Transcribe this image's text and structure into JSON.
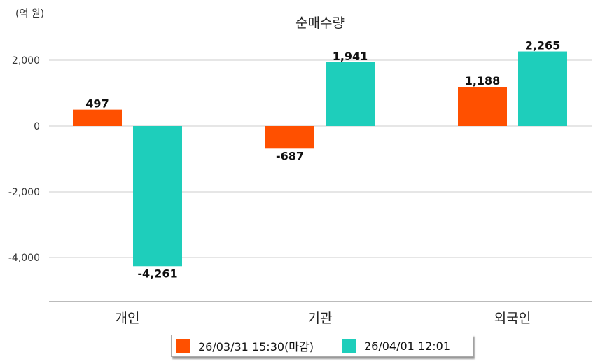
{
  "chart_data": {
    "type": "bar",
    "title": "순매수량",
    "unit_label": "(억 원)",
    "categories": [
      "개인",
      "기관",
      "외국인"
    ],
    "series": [
      {
        "name": "26/03/31 15:30(마감)",
        "color": "#ff5000",
        "values": [
          497,
          -687,
          1188
        ],
        "labels": [
          "497",
          "-687",
          "1,188"
        ]
      },
      {
        "name": "26/04/01 12:01",
        "color": "#1ecebb",
        "values": [
          -4261,
          1941,
          2265
        ],
        "labels": [
          "-4,261",
          "1,941",
          "2,265"
        ]
      }
    ],
    "yticks": [
      2000,
      0,
      -2000,
      -4000
    ],
    "ytick_labels": [
      "2,000",
      "0",
      "-2,000",
      "-4,000"
    ],
    "ylim": [
      -5300,
      2900
    ],
    "grid": true,
    "legend_position": "bottom-center"
  }
}
